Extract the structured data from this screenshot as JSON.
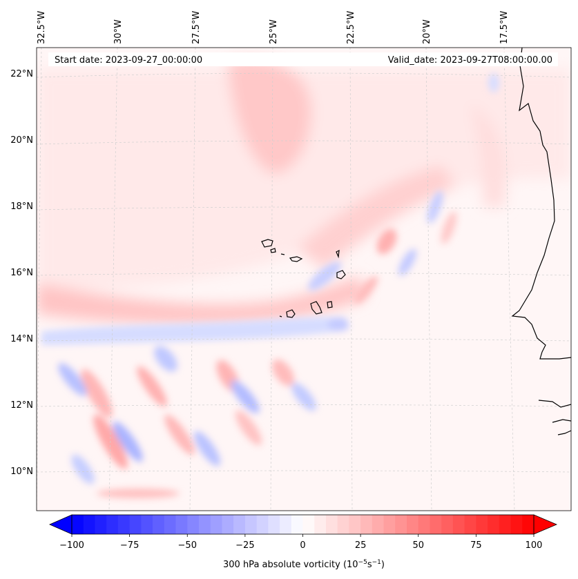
{
  "header": {
    "start_date": "Start date: 2023-09-27_00:00:00",
    "valid_date": "Valid_date: 2023-09-27T08:00:00.00"
  },
  "map": {
    "longitude_labels": [
      "32.5°W",
      "30°W",
      "27.5°W",
      "25°W",
      "22.5°W",
      "20°W",
      "17.5°W"
    ],
    "latitude_labels": [
      "22°N",
      "20°N",
      "18°N",
      "16°N",
      "14°N",
      "12°N",
      "10°N"
    ],
    "field": "300 hPa absolute vorticity",
    "colors": {
      "negative_max": "#0000ff",
      "neutral": "#ffffff",
      "positive_max": "#ff0000",
      "coastline": "#000000",
      "gridline": "#cccccc"
    }
  },
  "colorbar": {
    "ticks": [
      "−100",
      "−75",
      "−50",
      "−25",
      "0",
      "25",
      "50",
      "75",
      "100"
    ],
    "min": -100,
    "max": 100,
    "label": "300 hPa absolute vorticity (10",
    "label_exp1": "−5",
    "label_mid": "s",
    "label_exp2": "−1",
    "label_end": ")"
  }
}
